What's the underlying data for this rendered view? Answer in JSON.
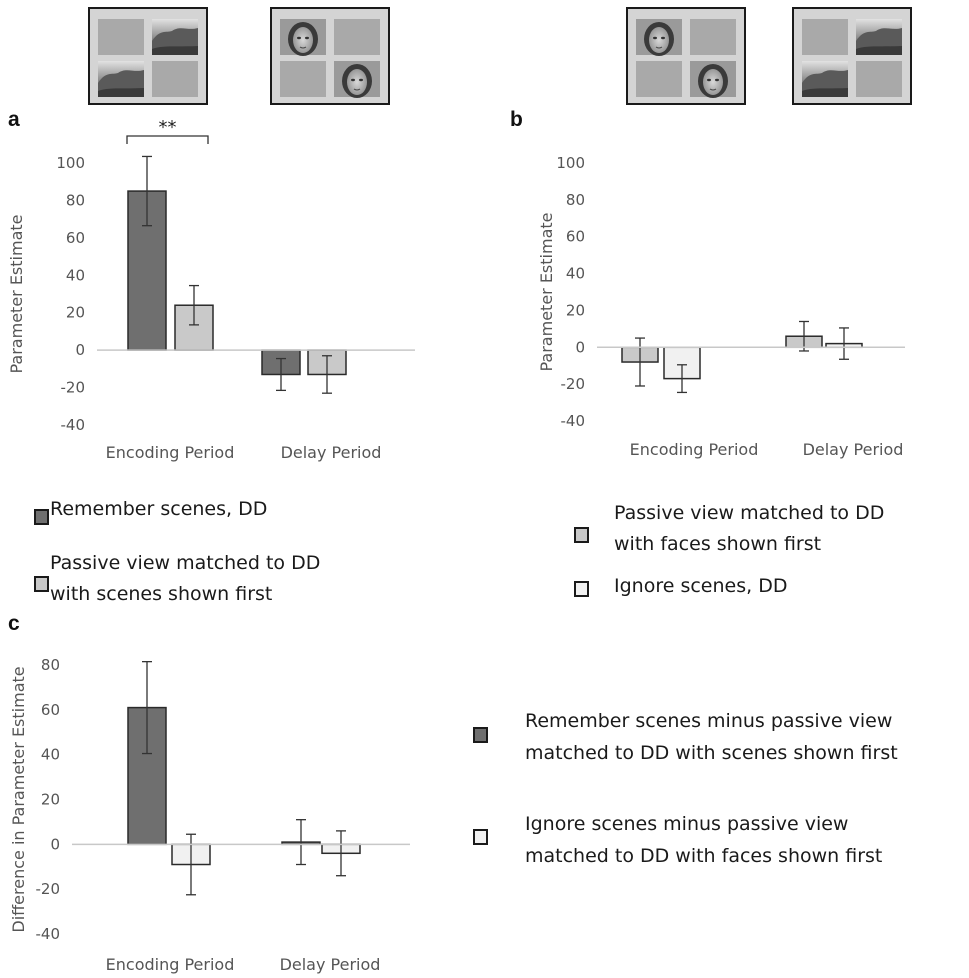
{
  "colors": {
    "dark_gray": "#6f6f6f",
    "light_gray": "#c9c9c9",
    "very_light": "#f1f1f1",
    "stim_background": "#d4d4d4",
    "stim_cell": "#a9a9a9"
  },
  "stimuli": {
    "a_left": [
      "gray-square",
      "scene-image",
      "scene-image",
      "gray-square"
    ],
    "a_right": [
      "face-image",
      "gray-square",
      "gray-square",
      "face-image"
    ],
    "b_left": [
      "face-image",
      "gray-square",
      "gray-square",
      "face-image"
    ],
    "b_right": [
      "gray-square",
      "scene-image",
      "scene-image",
      "gray-square"
    ]
  },
  "chart_data": [
    {
      "panel": "a",
      "type": "bar",
      "categories": [
        "Encoding Period",
        "Delay Period"
      ],
      "ylabel": "Parameter Estimate",
      "ylim": [
        -40,
        100
      ],
      "yticks": [
        100,
        80,
        60,
        40,
        20,
        0,
        -20,
        -40
      ],
      "series": [
        {
          "name": "Remember scenes, DD",
          "color": "#6f6f6f",
          "values": [
            85,
            -13
          ],
          "errors": [
            18.5,
            8.5
          ]
        },
        {
          "name": "Passive view matched to DD with scenes shown first",
          "color": "#c9c9c9",
          "values": [
            24,
            -13
          ],
          "errors": [
            10.5,
            10
          ]
        }
      ],
      "annotations": [
        {
          "text": "**",
          "between": "Encoding Period"
        }
      ],
      "legend": {
        "placement": "below",
        "lines": [
          [
            "Remember scenes, DD"
          ],
          [
            "Passive view matched to DD",
            "with scenes shown first"
          ]
        ]
      }
    },
    {
      "panel": "b",
      "type": "bar",
      "categories": [
        "Encoding Period",
        "Delay Period"
      ],
      "ylabel": "Parameter Estimate",
      "ylim": [
        -40,
        100
      ],
      "yticks": [
        100,
        80,
        60,
        40,
        20,
        0,
        -20,
        -40
      ],
      "series": [
        {
          "name": "Passive view matched to DD with faces shown first",
          "color": "#c9c9c9",
          "values": [
            -8,
            6
          ],
          "errors": [
            13,
            8
          ]
        },
        {
          "name": "Ignore scenes, DD",
          "color": "#f1f1f1",
          "values": [
            -17,
            2
          ],
          "errors": [
            7.5,
            8.5
          ]
        }
      ],
      "legend": {
        "placement": "below",
        "lines": [
          [
            "Passive view matched to DD",
            "with faces shown first"
          ],
          [
            "Ignore scenes, DD"
          ]
        ]
      }
    },
    {
      "panel": "c",
      "type": "bar",
      "categories": [
        "Encoding Period",
        "Delay Period"
      ],
      "ylabel": "Difference in Parameter Estimate",
      "ylim": [
        -40,
        80
      ],
      "yticks": [
        80,
        60,
        40,
        20,
        0,
        -20,
        -40
      ],
      "series": [
        {
          "name": "Remember scenes minus passive view matched to  DD with scenes shown first",
          "color": "#6f6f6f",
          "values": [
            61,
            1
          ],
          "errors": [
            20.5,
            10
          ]
        },
        {
          "name": "Ignore scenes minus passive view matched to DD with faces shown first",
          "color": "#f1f1f1",
          "values": [
            -9,
            -4
          ],
          "errors": [
            13.5,
            10
          ]
        }
      ],
      "legend": {
        "placement": "right",
        "lines": [
          [
            "Remember scenes minus passive view",
            "matched to  DD with scenes shown first"
          ],
          [
            "Ignore scenes minus passive view",
            "matched to DD with faces shown first"
          ]
        ]
      }
    }
  ]
}
